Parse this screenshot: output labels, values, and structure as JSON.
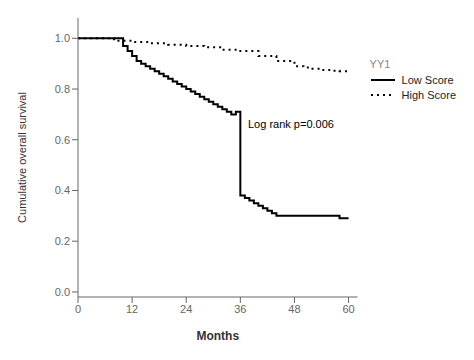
{
  "chart_data": {
    "type": "line",
    "xlabel": "Months",
    "ylabel": "Cumulative overall survival",
    "annotation": "Log rank p=0.006",
    "legend_title": "YY1",
    "legend": "right",
    "grid": false,
    "xlim": [
      0,
      62
    ],
    "ylim": [
      -0.02,
      1.08
    ],
    "xticks": [
      0,
      12,
      24,
      36,
      48,
      60
    ],
    "yticks": [
      {
        "value": 0,
        "label": "0.0"
      },
      0.2,
      0.4,
      0.6,
      0.8,
      {
        "value": 1.0,
        "label": "1.0"
      }
    ],
    "series": [
      {
        "name": "Low Score",
        "color": "#000000",
        "line_style": "solid",
        "x": [
          0,
          10,
          10,
          11,
          11,
          12,
          12,
          13,
          13,
          14,
          14,
          15,
          15,
          16,
          16,
          17,
          17,
          18,
          18,
          19,
          19,
          20,
          20,
          21,
          21,
          22,
          22,
          23,
          23,
          24,
          24,
          25,
          25,
          26,
          26,
          27,
          27,
          28,
          28,
          29,
          29,
          30,
          30,
          31,
          31,
          32,
          32,
          33,
          33,
          34,
          34,
          35,
          35,
          36,
          36,
          37,
          37,
          38,
          38,
          39,
          39,
          40,
          40,
          41,
          41,
          42,
          42,
          43,
          43,
          44,
          44,
          46,
          46,
          48,
          48,
          50,
          50,
          52,
          52,
          54,
          54,
          56,
          56,
          58,
          58,
          60
        ],
        "values": [
          1.0,
          1.0,
          0.97,
          0.97,
          0.95,
          0.95,
          0.93,
          0.93,
          0.91,
          0.91,
          0.9,
          0.9,
          0.89,
          0.89,
          0.88,
          0.88,
          0.87,
          0.87,
          0.86,
          0.86,
          0.85,
          0.85,
          0.84,
          0.84,
          0.83,
          0.83,
          0.82,
          0.82,
          0.81,
          0.81,
          0.8,
          0.8,
          0.79,
          0.79,
          0.78,
          0.78,
          0.77,
          0.77,
          0.76,
          0.76,
          0.75,
          0.75,
          0.74,
          0.74,
          0.73,
          0.73,
          0.72,
          0.72,
          0.71,
          0.71,
          0.7,
          0.7,
          0.71,
          0.71,
          0.38,
          0.38,
          0.37,
          0.37,
          0.36,
          0.36,
          0.35,
          0.35,
          0.34,
          0.34,
          0.33,
          0.33,
          0.32,
          0.32,
          0.31,
          0.31,
          0.3,
          0.3,
          0.3,
          0.3,
          0.3,
          0.3,
          0.3,
          0.3,
          0.3,
          0.3,
          0.3,
          0.3,
          0.3,
          0.3,
          0.29,
          0.29
        ]
      },
      {
        "name": "High Score",
        "color": "#000000",
        "line_style": "dotted",
        "x": [
          0,
          8,
          8,
          12,
          12,
          16,
          16,
          20,
          20,
          24,
          24,
          28,
          28,
          32,
          32,
          36,
          36,
          40,
          40,
          44,
          44,
          48,
          48,
          50,
          50,
          52,
          52,
          54,
          54,
          56,
          56,
          58,
          58,
          60
        ],
        "values": [
          1.0,
          1.0,
          0.99,
          0.99,
          0.985,
          0.985,
          0.98,
          0.98,
          0.975,
          0.975,
          0.97,
          0.97,
          0.965,
          0.965,
          0.955,
          0.955,
          0.95,
          0.95,
          0.93,
          0.93,
          0.91,
          0.91,
          0.89,
          0.89,
          0.885,
          0.885,
          0.88,
          0.88,
          0.875,
          0.875,
          0.872,
          0.872,
          0.87,
          0.87
        ]
      }
    ]
  }
}
